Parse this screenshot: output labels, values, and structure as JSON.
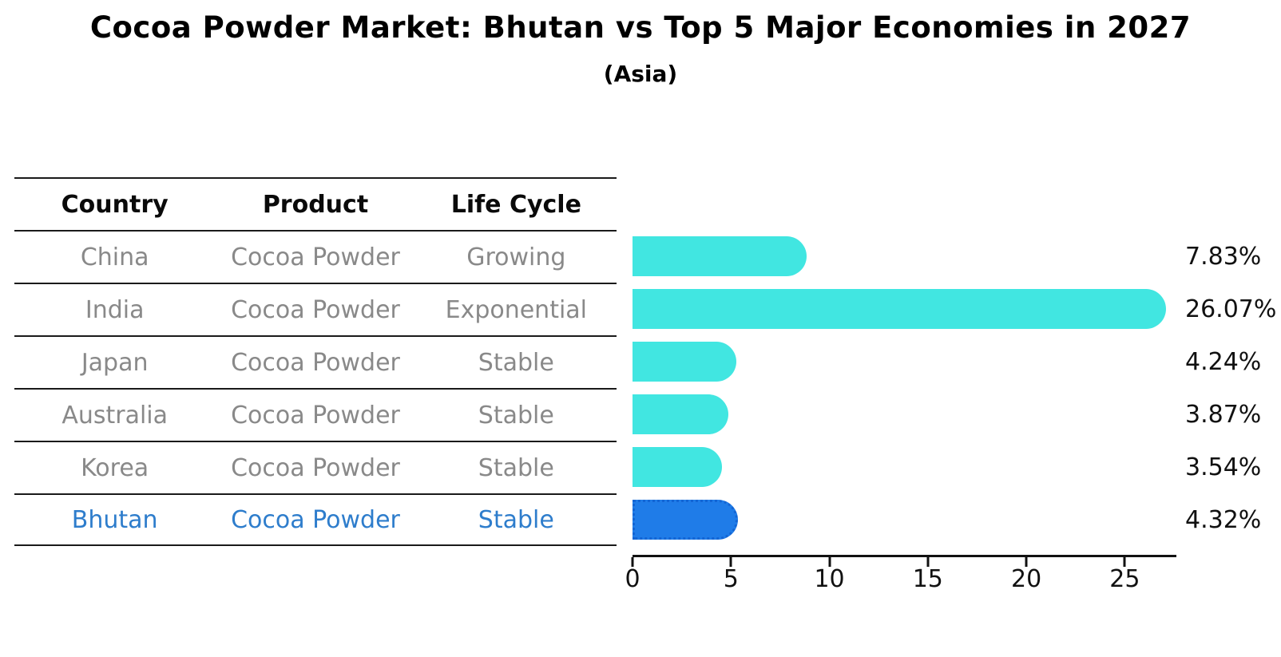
{
  "title": "Cocoa Powder Market: Bhutan vs Top 5 Major Economies in 2027",
  "subtitle": "(Asia)",
  "table": {
    "headers": [
      "Country",
      "Product",
      "Life Cycle"
    ],
    "rows": [
      {
        "country": "China",
        "product": "Cocoa Powder",
        "life_cycle": "Growing",
        "highlight": false
      },
      {
        "country": "India",
        "product": "Cocoa Powder",
        "life_cycle": "Exponential",
        "highlight": false
      },
      {
        "country": "Japan",
        "product": "Cocoa Powder",
        "life_cycle": "Stable",
        "highlight": false
      },
      {
        "country": "Australia",
        "product": "Cocoa Powder",
        "life_cycle": "Stable",
        "highlight": false
      },
      {
        "country": "Korea",
        "product": "Cocoa Powder",
        "life_cycle": "Stable",
        "highlight": false
      },
      {
        "country": "Bhutan",
        "product": "Cocoa Powder",
        "life_cycle": "Stable",
        "highlight": true
      }
    ]
  },
  "chart_data": {
    "type": "bar",
    "orientation": "horizontal",
    "categories": [
      "China",
      "India",
      "Japan",
      "Australia",
      "Korea",
      "Bhutan"
    ],
    "values": [
      7.83,
      26.07,
      4.24,
      3.87,
      3.54,
      4.32
    ],
    "labels": [
      "7.83%",
      "26.07%",
      "4.24%",
      "3.87%",
      "3.54%",
      "4.32%"
    ],
    "xlim": [
      0,
      27.5
    ],
    "xticks": [
      0,
      5,
      10,
      15,
      20,
      25
    ],
    "grid": false,
    "legend": "none",
    "bar_color": "#41E6E1",
    "highlight_color": "#1F7CE8",
    "highlight_border": "#1365D4",
    "highlight_index": 5
  },
  "colors": {
    "text_dark": "#111111",
    "text_gray": "#898989",
    "highlight_text": "#2E7DCC",
    "line": "#1A1A1A"
  }
}
